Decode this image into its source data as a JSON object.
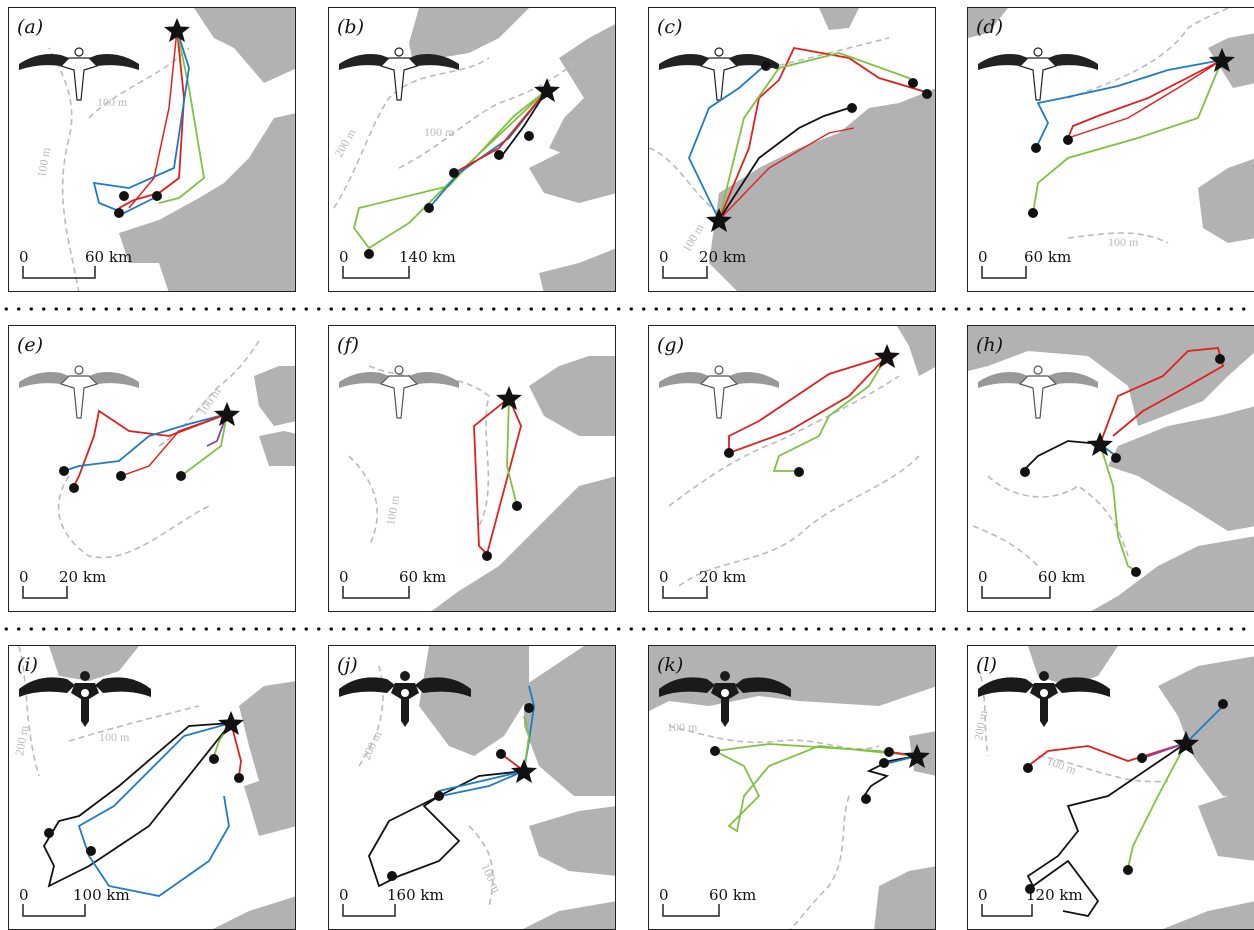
{
  "colors": {
    "land": "#b2b2b2",
    "contour": "#bbbbbb",
    "track_blue": "#1e7bc4",
    "track_red": "#e0201c",
    "track_green": "#7fc241",
    "track_black": "#111111",
    "track_purple": "#8e3fa8"
  },
  "panels": [
    {
      "id": "a",
      "label": "(a)",
      "scale": {
        "zero": "0",
        "distance": "60 km"
      },
      "contours": [
        "100 m",
        "100 m"
      ],
      "bird_icon": "gannet-adult-icon"
    },
    {
      "id": "b",
      "label": "(b)",
      "scale": {
        "zero": "0",
        "distance": "140 km"
      },
      "contours": [
        "100 m",
        "200 m"
      ],
      "bird_icon": "gannet-adult-icon"
    },
    {
      "id": "c",
      "label": "(c)",
      "scale": {
        "zero": "0",
        "distance": "20 km"
      },
      "contours": [
        "100 m"
      ],
      "bird_icon": "gannet-adult-icon"
    },
    {
      "id": "d",
      "label": "(d)",
      "scale": {
        "zero": "0",
        "distance": "60 km"
      },
      "contours": [
        "100 m"
      ],
      "bird_icon": "gannet-adult-icon"
    },
    {
      "id": "e",
      "label": "(e)",
      "scale": {
        "zero": "0",
        "distance": "20 km"
      },
      "contours": [
        "100 m"
      ],
      "bird_icon": "gannet-subadult-icon"
    },
    {
      "id": "f",
      "label": "(f)",
      "scale": {
        "zero": "0",
        "distance": "60 km"
      },
      "contours": [
        "100 m"
      ],
      "bird_icon": "gannet-subadult-icon"
    },
    {
      "id": "g",
      "label": "(g)",
      "scale": {
        "zero": "0",
        "distance": "20 km"
      },
      "contours": [],
      "bird_icon": "gannet-subadult-icon"
    },
    {
      "id": "h",
      "label": "(h)",
      "scale": {
        "zero": "0",
        "distance": "60 km"
      },
      "contours": [],
      "bird_icon": "gannet-subadult-icon"
    },
    {
      "id": "i",
      "label": "(i)",
      "scale": {
        "zero": "0",
        "distance": "100 km"
      },
      "contours": [
        "200 m",
        "100 m"
      ],
      "bird_icon": "gannet-juvenile-icon"
    },
    {
      "id": "j",
      "label": "(j)",
      "scale": {
        "zero": "0",
        "distance": "160 km"
      },
      "contours": [
        "200 m",
        "100 m"
      ],
      "bird_icon": "gannet-juvenile-icon"
    },
    {
      "id": "k",
      "label": "(k)",
      "scale": {
        "zero": "0",
        "distance": "60 km"
      },
      "contours": [
        "100 m"
      ],
      "bird_icon": "gannet-juvenile-icon"
    },
    {
      "id": "l",
      "label": "(l)",
      "scale": {
        "zero": "0",
        "distance": "120 km"
      },
      "contours": [
        "200 m",
        "100 m"
      ],
      "bird_icon": "gannet-juvenile-icon"
    }
  ]
}
